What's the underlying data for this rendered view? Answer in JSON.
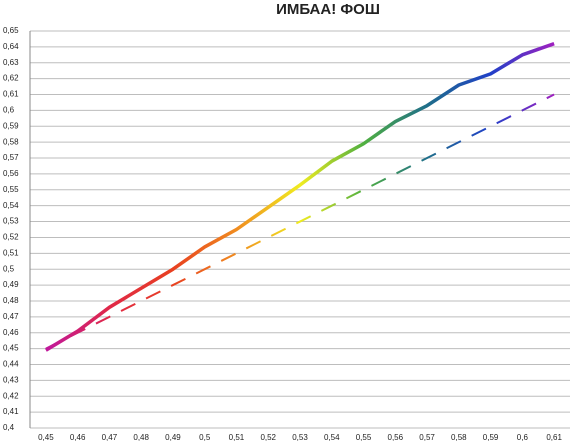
{
  "chart_data": {
    "type": "line",
    "title": "ИМБАА! ФОШ",
    "categories": [
      "0,45",
      "0,46",
      "0,47",
      "0,48",
      "0,49",
      "0,5",
      "0,51",
      "0,52",
      "0,53",
      "0,54",
      "0,55",
      "0,56",
      "0,57",
      "0,58",
      "0,59",
      "0,6",
      "0,61"
    ],
    "series": [
      {
        "values": [
          0.449,
          0.461,
          0.476,
          0.488,
          0.5,
          0.514,
          0.525,
          0.539,
          0.553,
          0.568,
          0.579,
          0.593,
          0.603,
          0.616,
          0.623,
          0.635,
          0.642
        ],
        "gradient": [
          "#c0189c",
          "#e02848",
          "#e84020",
          "#f08c20",
          "#f0ec20",
          "#50b040",
          "#1f6e8a",
          "#2040c8",
          "#a020c0"
        ],
        "dash": false
      },
      {
        "values": [
          0.45,
          0.46,
          0.47,
          0.48,
          0.49,
          0.5,
          0.51,
          0.52,
          0.53,
          0.54,
          0.55,
          0.56,
          0.57,
          0.58,
          0.59,
          0.6,
          0.61
        ],
        "gradient": [
          "#c0189c",
          "#e02848",
          "#e84020",
          "#f08c20",
          "#f0ec20",
          "#50b040",
          "#1f6e8a",
          "#2040c8",
          "#a020c0"
        ],
        "dash": true
      }
    ],
    "ylim": [
      0.4,
      0.65
    ],
    "yticks": [
      {
        "value": 0.4,
        "label": "0,4"
      },
      {
        "value": 0.41,
        "label": "0,41"
      },
      {
        "value": 0.42,
        "label": "0,42"
      },
      {
        "value": 0.43,
        "label": "0,43"
      },
      {
        "value": 0.44,
        "label": "0,44"
      },
      {
        "value": 0.45,
        "label": "0,45"
      },
      {
        "value": 0.46,
        "label": "0,46"
      },
      {
        "value": 0.47,
        "label": "0,47"
      },
      {
        "value": 0.48,
        "label": "0,48"
      },
      {
        "value": 0.49,
        "label": "0,49"
      },
      {
        "value": 0.5,
        "label": "0,5"
      },
      {
        "value": 0.51,
        "label": "0,51"
      },
      {
        "value": 0.52,
        "label": "0,52"
      },
      {
        "value": 0.53,
        "label": "0,53"
      },
      {
        "value": 0.54,
        "label": "0,54"
      },
      {
        "value": 0.55,
        "label": "0,55"
      },
      {
        "value": 0.56,
        "label": "0,56"
      },
      {
        "value": 0.57,
        "label": "0,57"
      },
      {
        "value": 0.58,
        "label": "0,58"
      },
      {
        "value": 0.59,
        "label": "0,59"
      },
      {
        "value": 0.6,
        "label": "0,6"
      },
      {
        "value": 0.61,
        "label": "0,61"
      },
      {
        "value": 0.62,
        "label": "0,62"
      },
      {
        "value": 0.63,
        "label": "0,63"
      },
      {
        "value": 0.64,
        "label": "0,64"
      },
      {
        "value": 0.65,
        "label": "0,65"
      }
    ],
    "grid": true
  }
}
